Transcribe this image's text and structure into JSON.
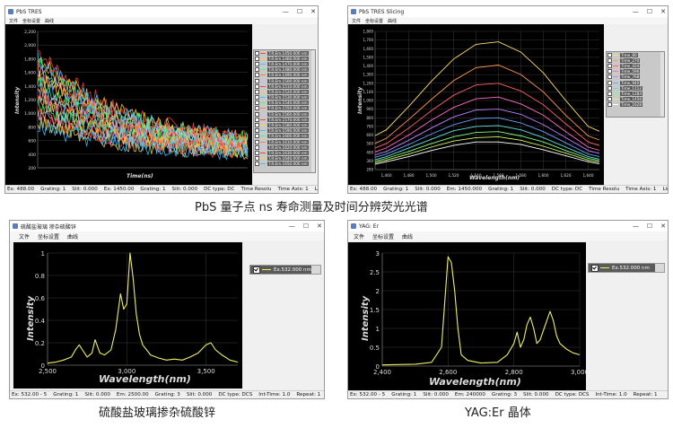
{
  "caption_top": "PbS 量子点 ns 寿命测量及时间分辨荧光光谱",
  "caption_bl": "硫酸盐玻璃掺杂硫酸锌",
  "caption_br": "YAG:Er 晶体",
  "win_controls": {
    "minimize": "—",
    "maximize": "☐",
    "close": "✕"
  },
  "windows": {
    "tres": {
      "title": "PbS TRES",
      "menu": [
        "文件",
        "坐标设置",
        "曲线"
      ],
      "ylabel": "Intensity",
      "xlabel": "Time(ns)",
      "yticks": [
        "2,200",
        "2,000",
        "1,800",
        "1,600",
        "1,400",
        "1,200",
        "1,000",
        "800",
        "600",
        "400",
        "200"
      ],
      "legend": [
        "T.R.Em.1450.000 nm",
        "T.R.Em.1460.000 nm",
        "T.R.Em.1470.000 nm",
        "T.R.Em.1480.000 nm",
        "T.R.Em.1490.000 nm",
        "T.R.Em.1500.000 nm",
        "T.R.Em.1510.000 nm",
        "T.R.Em.1520.000 nm",
        "T.R.Em.1530.000 nm",
        "T.R.Em.1540.000 nm",
        "T.R.Em.1550.000 nm",
        "T.R.Em.1560.000 nm",
        "T.R.Em.1570.000 nm",
        "T.R.Em.1580.000 nm",
        "T.R.Em.1590.000 nm",
        "T.R.Em.1600.000 nm",
        "T.R.Em.1610.000 nm",
        "T.R.Em.1620.000 nm",
        "T.R.Em.1630.000 nm",
        "T.R.Em.1640.000 nm",
        "T.R.Em.1650.000 nm"
      ],
      "status": [
        "Ex: 488.00",
        "Grating: 1",
        "Slit: 0.000",
        "Ex: 1450.00",
        "Grating: 1",
        "Slit: 0.000",
        "DC type: DC",
        "Time Resolu",
        "Time Axis: 1",
        "LightSource"
      ]
    },
    "slicing": {
      "title": "PbS TRES Slicing",
      "menu": [
        "文件",
        "坐标设置",
        "曲线"
      ],
      "ylabel": "Intensity",
      "xlabel": "Wavelength(nm)",
      "yticks": [
        "1,800",
        "1,700",
        "1,600",
        "1,500",
        "1,400",
        "1,300",
        "1,200",
        "1,100",
        "1,000",
        "900",
        "800",
        "700",
        "600",
        "500",
        "400",
        "300",
        "200"
      ],
      "xticks": [
        "1,460",
        "1,480",
        "1,500",
        "1,520",
        "1,540",
        "1,560",
        "1,580",
        "1,600",
        "1,620",
        "1,640"
      ],
      "legend": [
        "Time_80",
        "Time_270",
        "Time_424",
        "Time_596",
        "Time_768",
        "Time_940",
        "Time_1112",
        "Time_1284",
        "Time_1456",
        "Time_1628"
      ],
      "status": [
        "Ex: 488.00",
        "Grating: 1",
        "Slit: 0.000",
        "Em: 1450.000",
        "Grating: 1",
        "Slit: 0.000",
        "DC type: DC",
        "Time Resolu",
        "Time Axis: 1",
        "LightSource"
      ]
    },
    "glass": {
      "title": "硫酸盐玻璃 掺杂硫酸锌",
      "menu": [
        "文件",
        "坐标设置",
        "曲线"
      ],
      "ylabel": "Intensity",
      "xlabel": "Wavelength(nm)",
      "yticks": [
        "1",
        "0.8",
        "0.6",
        "0.4",
        "0.2",
        "0"
      ],
      "xticks": [
        "2,500",
        "3,000",
        "3,500"
      ],
      "legend": "Ex.532.000 nm",
      "status": [
        "Ex: 532.00 - 5",
        "Grating: 1",
        "Slit: 0.000",
        "Em: 2500.00",
        "Grating: 3",
        "Slit: 0.000",
        "DC type: DCS",
        "Int-Time: 1.0",
        "Repeat: 1"
      ]
    },
    "yag": {
      "title": "YAG: Er",
      "menu": [
        "文件",
        "坐标设置",
        "曲线"
      ],
      "ylabel": "Intensity",
      "xlabel": "Wavelength(nm)",
      "yticks": [
        "3",
        "2.5",
        "2",
        "1.5",
        "1",
        "0.5",
        "0"
      ],
      "xticks": [
        "2,400",
        "2,600",
        "2,800",
        "3,000"
      ],
      "legend": "Ex.532.000 nm",
      "status": [
        "Ex: 532.00 - 5",
        "Grating: 1",
        "Slit: 0.000",
        "Em: 240000",
        "Grating: 3",
        "Slit: 0.000",
        "DC type: DCS",
        "Int-Time: 1.0",
        "Repeat: 1"
      ]
    }
  },
  "colors": {
    "plot_bg": "#000000",
    "glass_trace": "#f0f060",
    "yag_trace": "#f0f060",
    "grid": "#3a3a3a",
    "tick_text": "#dddddd"
  },
  "chart_data": [
    {
      "type": "line",
      "title": "PbS TRES",
      "xlabel": "Time(ns)",
      "ylabel": "Intensity",
      "ylim": [
        0,
        2200
      ],
      "series_count": 21,
      "series_palette": [
        "#ff4040",
        "#ffd040",
        "#40c0ff",
        "#40ff80",
        "#ff8040",
        "#c0c0ff"
      ],
      "decay_model": "multi-exponential decay curves, peak ≈2000 counts decaying to ≈400"
    },
    {
      "type": "line",
      "title": "PbS TRES Slicing",
      "xlabel": "Wavelength(nm)",
      "ylabel": "Intensity",
      "ylim": [
        200,
        1800
      ],
      "x": [
        1460,
        1480,
        1500,
        1520,
        1540,
        1560,
        1580,
        1600,
        1620,
        1640
      ],
      "series": [
        {
          "name": "Time_80",
          "values": [
            660,
            930,
            1220,
            1480,
            1650,
            1680,
            1560,
            1320,
            1000,
            700
          ]
        },
        {
          "name": "Time_270",
          "values": [
            560,
            780,
            1010,
            1230,
            1380,
            1410,
            1300,
            1100,
            830,
            590
          ]
        },
        {
          "name": "Time_424",
          "values": [
            500,
            680,
            880,
            1060,
            1180,
            1200,
            1110,
            950,
            730,
            520
          ]
        },
        {
          "name": "Time_596",
          "values": [
            450,
            600,
            770,
            920,
            1020,
            1040,
            960,
            830,
            640,
            460
          ]
        },
        {
          "name": "Time_768",
          "values": [
            410,
            540,
            680,
            810,
            890,
            900,
            840,
            720,
            570,
            420
          ]
        },
        {
          "name": "Time_940",
          "values": [
            380,
            490,
            610,
            720,
            790,
            800,
            740,
            640,
            510,
            380
          ]
        },
        {
          "name": "Time_1112",
          "values": [
            350,
            450,
            550,
            650,
            700,
            710,
            660,
            570,
            460,
            350
          ]
        },
        {
          "name": "Time_1284",
          "values": [
            330,
            410,
            500,
            580,
            630,
            640,
            590,
            520,
            420,
            330
          ]
        },
        {
          "name": "Time_1456",
          "values": [
            310,
            380,
            460,
            530,
            570,
            580,
            540,
            470,
            390,
            310
          ]
        },
        {
          "name": "Time_1628",
          "values": [
            290,
            350,
            420,
            480,
            520,
            520,
            490,
            430,
            360,
            290
          ]
        }
      ]
    },
    {
      "type": "line",
      "title": "硫酸盐玻璃 掺杂硫酸锌",
      "xlabel": "Wavelength(nm)",
      "ylabel": "Intensity",
      "xlim": [
        2500,
        3700
      ],
      "ylim": [
        0,
        1.1
      ],
      "series": [
        {
          "name": "Ex.532.000 nm",
          "x": [
            2500,
            2550,
            2600,
            2650,
            2680,
            2700,
            2720,
            2750,
            2780,
            2800,
            2830,
            2860,
            2900,
            2930,
            2960,
            2980,
            3000,
            3020,
            3040,
            3060,
            3080,
            3100,
            3150,
            3200,
            3250,
            3300,
            3350,
            3400,
            3450,
            3500,
            3530,
            3560,
            3600,
            3650,
            3700
          ],
          "y": [
            0.02,
            0.03,
            0.05,
            0.08,
            0.16,
            0.2,
            0.15,
            0.08,
            0.12,
            0.25,
            0.12,
            0.1,
            0.15,
            0.35,
            0.7,
            0.55,
            0.6,
            1.1,
            0.85,
            0.5,
            0.3,
            0.2,
            0.1,
            0.07,
            0.05,
            0.06,
            0.05,
            0.08,
            0.12,
            0.2,
            0.22,
            0.15,
            0.1,
            0.05,
            0.03
          ]
        }
      ]
    },
    {
      "type": "line",
      "title": "YAG: Er",
      "xlabel": "Wavelength(nm)",
      "ylabel": "Intensity",
      "xlim": [
        2400,
        3000
      ],
      "ylim": [
        0,
        3
      ],
      "series": [
        {
          "name": "Ex.532.000 nm",
          "x": [
            2400,
            2450,
            2500,
            2550,
            2580,
            2600,
            2610,
            2620,
            2630,
            2640,
            2660,
            2700,
            2750,
            2780,
            2800,
            2810,
            2820,
            2830,
            2840,
            2850,
            2860,
            2870,
            2880,
            2900,
            2910,
            2920,
            2930,
            2940,
            2960,
            2980,
            3000
          ],
          "y": [
            0.03,
            0.04,
            0.05,
            0.1,
            0.5,
            2.9,
            2.75,
            2.0,
            1.0,
            0.3,
            0.15,
            0.08,
            0.1,
            0.3,
            0.6,
            0.9,
            0.5,
            0.7,
            1.1,
            1.3,
            1.0,
            0.6,
            0.7,
            1.2,
            1.45,
            1.2,
            0.8,
            0.6,
            0.45,
            0.35,
            0.3
          ]
        }
      ]
    }
  ]
}
